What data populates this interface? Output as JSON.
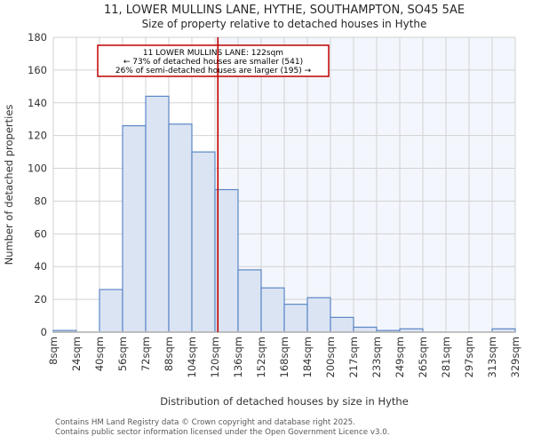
{
  "header": {
    "title": "11, LOWER MULLINS LANE, HYTHE, SOUTHAMPTON, SO45 5AE",
    "subtitle": "Size of property relative to detached houses in Hythe"
  },
  "chart_data": {
    "type": "bar",
    "title": "11, LOWER MULLINS LANE, HYTHE, SOUTHAMPTON, SO45 5AE",
    "subtitle": "Size of property relative to detached houses in Hythe",
    "xlabel": "Distribution of detached houses by size in Hythe",
    "ylabel": "Number of detached properties",
    "ylim": [
      0,
      180
    ],
    "y_ticks": [
      0,
      20,
      40,
      60,
      80,
      100,
      120,
      140,
      160,
      180
    ],
    "bin_edges_sqm": [
      8,
      24,
      40,
      56,
      72,
      88,
      104,
      120,
      136,
      152,
      168,
      184,
      200,
      217,
      233,
      249,
      265,
      281,
      297,
      313,
      329
    ],
    "x_tick_labels": [
      "8sqm",
      "24sqm",
      "40sqm",
      "56sqm",
      "72sqm",
      "88sqm",
      "104sqm",
      "120sqm",
      "136sqm",
      "152sqm",
      "168sqm",
      "184sqm",
      "200sqm",
      "217sqm",
      "233sqm",
      "249sqm",
      "265sqm",
      "281sqm",
      "297sqm",
      "313sqm",
      "329sqm"
    ],
    "values": [
      1,
      0,
      26,
      126,
      144,
      127,
      110,
      87,
      38,
      27,
      17,
      21,
      9,
      3,
      1,
      2,
      0,
      0,
      0,
      2
    ],
    "grid": "on",
    "legend": "none",
    "marker": {
      "value_sqm": 122,
      "color": "#c00000",
      "shade_right_of_marker": true
    },
    "colors": {
      "bar_fill": "#dbe4f3",
      "bar_edge": "#5b87c5",
      "grid": "#d2d2d2",
      "axis_line": "#b9b9b9",
      "shade": "#f3f6fc",
      "marker_line": "#c00000"
    }
  },
  "annotation": {
    "line1": "11 LOWER MULLINS LANE: 122sqm",
    "line2": "← 73% of detached houses are smaller (541)",
    "line3": "26% of semi-detached houses are larger (195) →"
  },
  "footer": {
    "line1": "Contains HM Land Registry data © Crown copyright and database right 2025.",
    "line2": "Contains public sector information licensed under the Open Government Licence v3.0."
  }
}
